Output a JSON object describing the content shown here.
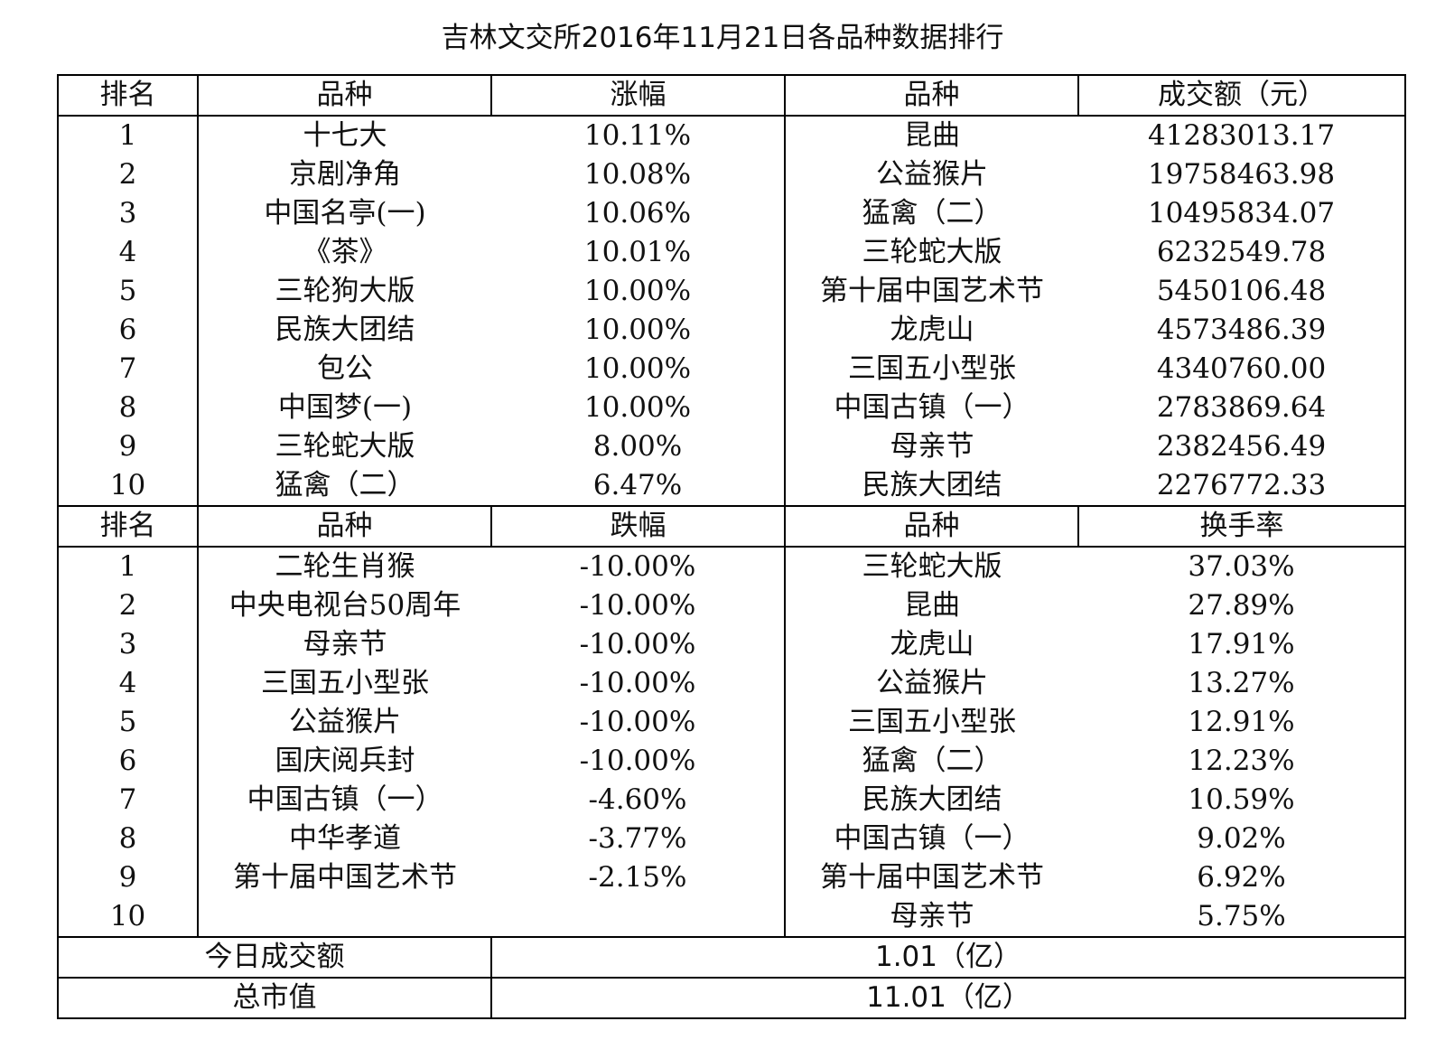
{
  "title": "吉林文交所2016年11月21日各品种数据排行",
  "top_header": [
    "排名",
    "品种",
    "涨幅",
    "品种",
    "成交额（元）"
  ],
  "top_rows": [
    [
      "1",
      "十七大",
      "10.11%",
      "昆曲",
      "41283013.17"
    ],
    [
      "2",
      "京剧净角",
      "10.08%",
      "公益猴片",
      "19758463.98"
    ],
    [
      "3",
      "中国名亭(一)",
      "10.06%",
      "猛禽（二）",
      "10495834.07"
    ],
    [
      "4",
      "《茶》",
      "10.01%",
      "三轮蛇大版",
      "6232549.78"
    ],
    [
      "5",
      "三轮狗大版",
      "10.00%",
      "第十届中国艺术节",
      "5450106.48"
    ],
    [
      "6",
      "民族大团结",
      "10.00%",
      "龙虎山",
      "4573486.39"
    ],
    [
      "7",
      "包公",
      "10.00%",
      "三国五小型张",
      "4340760.00"
    ],
    [
      "8",
      "中国梦(一)",
      "10.00%",
      "中国古镇（一）",
      "2783869.64"
    ],
    [
      "9",
      "三轮蛇大版",
      "8.00%",
      "母亲节",
      "2382456.49"
    ],
    [
      "10",
      "猛禽（二）",
      "6.47%",
      "民族大团结",
      "2276772.33"
    ]
  ],
  "bottom_header": [
    "排名",
    "品种",
    "跌幅",
    "品种",
    "换手率"
  ],
  "bottom_rows": [
    [
      "1",
      "二轮生肖猴",
      "-10.00%",
      "三轮蛇大版",
      "37.03%"
    ],
    [
      "2",
      "中央电视台50周年",
      "-10.00%",
      "昆曲",
      "27.89%"
    ],
    [
      "3",
      "母亲节",
      "-10.00%",
      "龙虎山",
      "17.91%"
    ],
    [
      "4",
      "三国五小型张",
      "-10.00%",
      "公益猴片",
      "13.27%"
    ],
    [
      "5",
      "公益猴片",
      "-10.00%",
      "三国五小型张",
      "12.91%"
    ],
    [
      "6",
      "国庆阅兵封",
      "-10.00%",
      "猛禽（二）",
      "12.23%"
    ],
    [
      "7",
      "中国古镇（一）",
      "-4.60%",
      "民族大团结",
      "10.59%"
    ],
    [
      "8",
      "中华孝道",
      "-3.77%",
      "中国古镇（一）",
      "9.02%"
    ],
    [
      "9",
      "第十届中国艺术节",
      "-2.15%",
      "第十届中国艺术节",
      "6.92%"
    ],
    [
      "10",
      "",
      "",
      "母亲节",
      "5.75%"
    ]
  ],
  "summary": [
    {
      "label": "今日成交额",
      "value": "1.01（亿）"
    },
    {
      "label": "总市值",
      "value": "11.01（亿）"
    }
  ]
}
